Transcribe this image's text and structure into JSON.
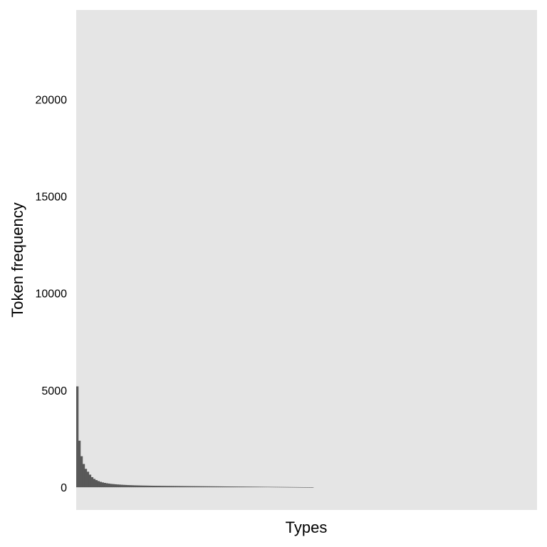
{
  "chart_data": {
    "type": "bar",
    "title": "",
    "xlabel": "Types",
    "ylabel": "Token frequency",
    "ylim": [
      -1170,
      24600
    ],
    "yticks": [
      0,
      5000,
      10000,
      15000,
      20000
    ],
    "x_tick_labels": "none",
    "grid": false,
    "legend": "none",
    "sorted": "descending",
    "series": [
      {
        "values": [
          5200,
          2400,
          1600,
          1200,
          950,
          800,
          650,
          520,
          430,
          370,
          320,
          280,
          250,
          225,
          205,
          190,
          175,
          165,
          155,
          145,
          138,
          130,
          124,
          118,
          112,
          108,
          104,
          100,
          97,
          94,
          91,
          88,
          86,
          84,
          82,
          80,
          78,
          76,
          75,
          74,
          72,
          71,
          70,
          69,
          68,
          67,
          66,
          65,
          64,
          63,
          62,
          61,
          60,
          59,
          58,
          57,
          56,
          55,
          54,
          53,
          52,
          51,
          50,
          49,
          48,
          47,
          46,
          45,
          44,
          43,
          42,
          41,
          40,
          39,
          38,
          37,
          36,
          35,
          34,
          33,
          32,
          31,
          30,
          29,
          28,
          27,
          26,
          25,
          24,
          23,
          22,
          21,
          20,
          19,
          18,
          17,
          16,
          15,
          14,
          13,
          12,
          11,
          10,
          9,
          8,
          7,
          6,
          5,
          4,
          3,
          2,
          1
        ]
      }
    ]
  },
  "colors": {
    "panel_background": "#e5e5e5",
    "bar_fill": "#595959",
    "text": "#000000"
  }
}
